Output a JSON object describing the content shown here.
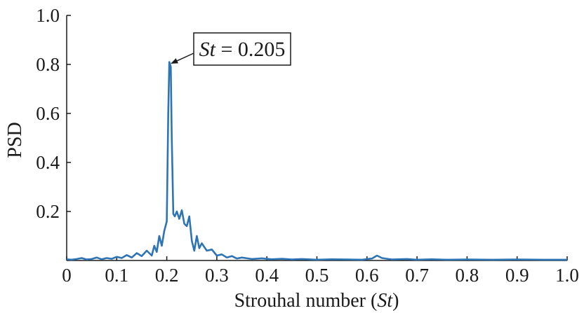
{
  "chart_data": {
    "type": "line",
    "xlabel": "Strouhal number (St)",
    "xlabel_parts": {
      "prefix": "Strouhal number (",
      "var": "St",
      "suffix": ")"
    },
    "ylabel": "PSD",
    "xlim": [
      0,
      1.0
    ],
    "ylim": [
      0,
      1.0
    ],
    "x_ticks": [
      0,
      0.1,
      0.2,
      0.3,
      0.4,
      0.5,
      0.6,
      0.7,
      0.8,
      0.9,
      1.0
    ],
    "x_tick_labels": [
      "0",
      "0.1",
      "0.2",
      "0.3",
      "0.4",
      "0.5",
      "0.6",
      "0.7",
      "0.8",
      "0.9",
      "1.0"
    ],
    "y_ticks": [
      0.2,
      0.4,
      0.6,
      0.8,
      1.0
    ],
    "y_tick_labels": [
      "0.2",
      "0.4",
      "0.6",
      "0.8",
      "1.0"
    ],
    "grid": false,
    "line_color": "#2e74b5",
    "annotation": {
      "var": "St",
      "rest": " = 0.205",
      "x": 0.205,
      "y": 0.81
    },
    "series": [
      {
        "x": [
          0,
          0.01,
          0.02,
          0.03,
          0.04,
          0.05,
          0.06,
          0.07,
          0.08,
          0.09,
          0.1,
          0.11,
          0.12,
          0.13,
          0.14,
          0.15,
          0.16,
          0.17,
          0.175,
          0.18,
          0.185,
          0.19,
          0.195,
          0.2,
          0.203,
          0.205,
          0.208,
          0.21,
          0.213,
          0.216,
          0.22,
          0.225,
          0.23,
          0.235,
          0.24,
          0.245,
          0.25,
          0.255,
          0.26,
          0.265,
          0.27,
          0.28,
          0.29,
          0.3,
          0.31,
          0.32,
          0.33,
          0.34,
          0.35,
          0.37,
          0.39,
          0.41,
          0.43,
          0.45,
          0.47,
          0.5,
          0.53,
          0.56,
          0.59,
          0.61,
          0.62,
          0.63,
          0.65,
          0.68,
          0.7,
          0.73,
          0.76,
          0.8,
          0.85,
          0.9,
          0.95,
          1.0
        ],
        "y": [
          0.005,
          0.003,
          0.006,
          0.01,
          0.004,
          0.006,
          0.012,
          0.005,
          0.01,
          0.007,
          0.015,
          0.01,
          0.022,
          0.012,
          0.03,
          0.018,
          0.04,
          0.02,
          0.06,
          0.035,
          0.1,
          0.06,
          0.12,
          0.16,
          0.6,
          0.81,
          0.79,
          0.5,
          0.19,
          0.18,
          0.2,
          0.17,
          0.205,
          0.15,
          0.14,
          0.18,
          0.08,
          0.04,
          0.1,
          0.05,
          0.07,
          0.04,
          0.045,
          0.02,
          0.025,
          0.012,
          0.018,
          0.008,
          0.012,
          0.006,
          0.009,
          0.005,
          0.007,
          0.004,
          0.006,
          0.003,
          0.005,
          0.004,
          0.003,
          0.008,
          0.02,
          0.01,
          0.004,
          0.006,
          0.003,
          0.005,
          0.003,
          0.004,
          0.003,
          0.004,
          0.003,
          0.003
        ]
      }
    ]
  }
}
